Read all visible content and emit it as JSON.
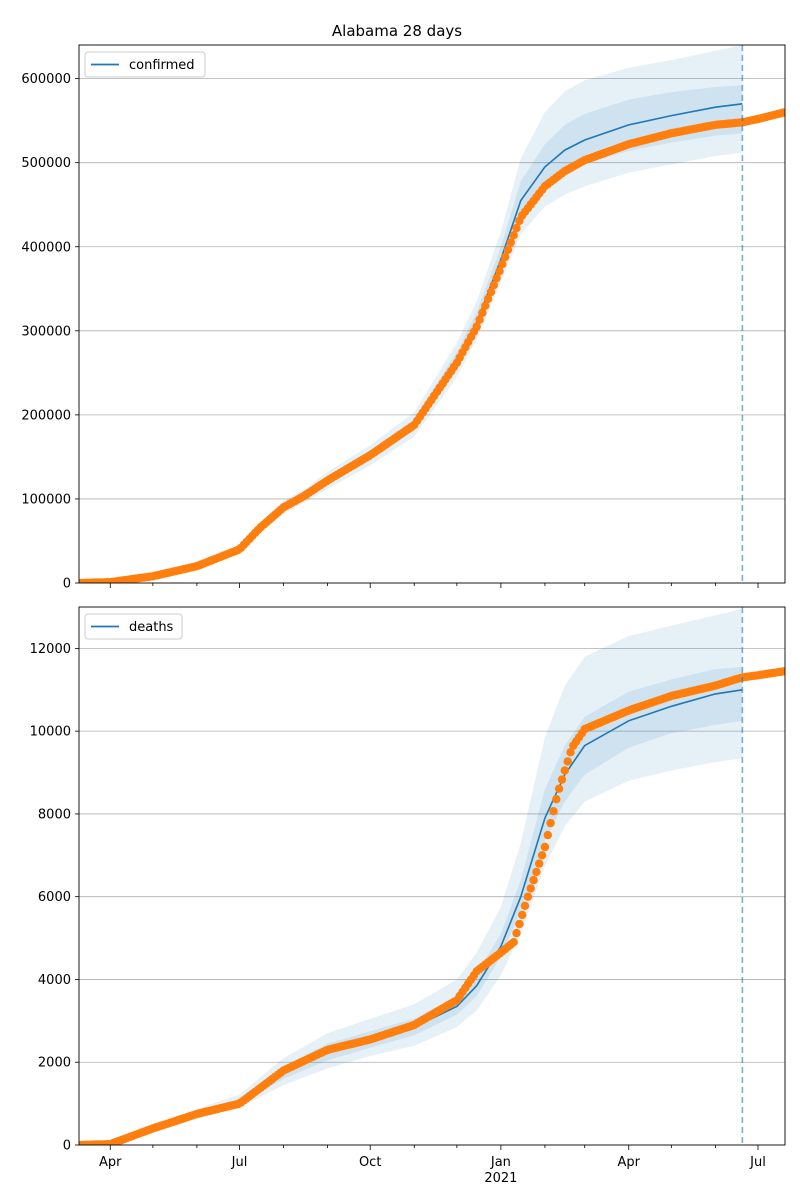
{
  "figure": {
    "title": "Alabama 28 days"
  },
  "chart_data": [
    {
      "type": "line",
      "title": "Alabama 28 days",
      "legend": {
        "entries": [
          "confirmed"
        ],
        "placement": "top-left"
      },
      "ylim": [
        0,
        640000
      ],
      "yticks": [
        0,
        100000,
        200000,
        300000,
        400000,
        500000,
        600000
      ],
      "ytick_labels": [
        "0",
        "100000",
        "200000",
        "300000",
        "400000",
        "500000",
        "600000"
      ],
      "xlim": [
        "2020-03-10",
        "2021-07-20"
      ],
      "grid": "y",
      "vline": "2021-06-20",
      "series": [
        {
          "name": "confirmed",
          "kind": "model",
          "color": "#1f77b4",
          "x": [
            "2020-03-10",
            "2020-04-01",
            "2020-05-01",
            "2020-06-01",
            "2020-07-01",
            "2020-07-15",
            "2020-08-01",
            "2020-08-15",
            "2020-09-01",
            "2020-10-01",
            "2020-11-01",
            "2020-12-01",
            "2020-12-15",
            "2021-01-01",
            "2021-01-15",
            "2021-02-01",
            "2021-02-15",
            "2021-03-01",
            "2021-04-01",
            "2021-05-01",
            "2021-06-01",
            "2021-06-20"
          ],
          "values": [
            0,
            1000,
            8000,
            20000,
            40000,
            65000,
            90000,
            103000,
            122000,
            152000,
            188000,
            265000,
            310000,
            385000,
            455000,
            495000,
            515000,
            527000,
            545000,
            556000,
            566000,
            570000
          ],
          "band_inner_lower": [
            0,
            900,
            7500,
            19000,
            38500,
            62000,
            86000,
            99000,
            117000,
            146000,
            181000,
            255000,
            300000,
            372000,
            435000,
            470000,
            488000,
            498000,
            514000,
            524000,
            532000,
            535000
          ],
          "band_inner_upper": [
            0,
            1100,
            8500,
            21000,
            41500,
            68000,
            94000,
            107000,
            127000,
            158000,
            195000,
            275000,
            322000,
            400000,
            478000,
            522000,
            545000,
            558000,
            575000,
            584000,
            590000,
            592000
          ],
          "band_outer_lower": [
            0,
            800,
            7000,
            18000,
            37000,
            59000,
            82000,
            95000,
            112000,
            140000,
            174000,
            245000,
            290000,
            358000,
            415000,
            448000,
            462000,
            472000,
            488000,
            498000,
            508000,
            512000
          ],
          "band_outer_upper": [
            0,
            1200,
            9000,
            22000,
            43000,
            71000,
            98000,
            111000,
            132000,
            164000,
            203000,
            286000,
            335000,
            418000,
            505000,
            560000,
            585000,
            598000,
            613000,
            622000,
            633000,
            640000
          ]
        },
        {
          "name": "",
          "kind": "observed",
          "color": "#ff7f0e",
          "x": [
            "2020-03-10",
            "2020-04-01",
            "2020-05-01",
            "2020-06-01",
            "2020-07-01",
            "2020-07-15",
            "2020-08-01",
            "2020-08-15",
            "2020-09-01",
            "2020-10-01",
            "2020-11-01",
            "2020-12-01",
            "2020-12-15",
            "2021-01-01",
            "2021-01-15",
            "2021-02-01",
            "2021-02-15",
            "2021-03-01",
            "2021-04-01",
            "2021-05-01",
            "2021-06-01",
            "2021-06-20",
            "2021-07-01",
            "2021-07-20"
          ],
          "values": [
            0,
            1000,
            8000,
            20000,
            40000,
            65000,
            90000,
            103000,
            122000,
            152000,
            188000,
            262000,
            305000,
            375000,
            435000,
            472000,
            490000,
            503000,
            522000,
            535000,
            545000,
            548000,
            552000,
            560000
          ]
        }
      ]
    },
    {
      "type": "line",
      "title": "",
      "legend": {
        "entries": [
          "deaths"
        ],
        "placement": "top-left"
      },
      "ylim": [
        0,
        13000
      ],
      "yticks": [
        0,
        2000,
        4000,
        6000,
        8000,
        10000,
        12000
      ],
      "ytick_labels": [
        "0",
        "2000",
        "4000",
        "6000",
        "8000",
        "10000",
        "12000"
      ],
      "xlim": [
        "2020-03-10",
        "2021-07-20"
      ],
      "xticks": [
        "2020-04-01",
        "2020-07-01",
        "2020-10-01",
        "2021-01-01",
        "2021-04-01",
        "2021-07-01"
      ],
      "xtick_labels": [
        "Apr",
        "Jul",
        "Oct",
        "Jan",
        "Apr",
        "Jul"
      ],
      "xtick_year_label": "2021",
      "grid": "y",
      "vline": "2021-06-20",
      "series": [
        {
          "name": "deaths",
          "kind": "model",
          "color": "#1f77b4",
          "x": [
            "2020-03-10",
            "2020-04-01",
            "2020-05-01",
            "2020-06-01",
            "2020-07-01",
            "2020-08-01",
            "2020-09-01",
            "2020-10-01",
            "2020-11-01",
            "2020-12-01",
            "2020-12-15",
            "2021-01-01",
            "2021-01-15",
            "2021-02-01",
            "2021-02-15",
            "2021-03-01",
            "2021-04-01",
            "2021-05-01",
            "2021-06-01",
            "2021-06-20"
          ],
          "values": [
            0,
            20,
            350,
            750,
            1050,
            1750,
            2250,
            2550,
            2850,
            3350,
            3850,
            4800,
            6000,
            7900,
            8950,
            9650,
            10250,
            10600,
            10900,
            11000
          ],
          "band_inner_lower": [
            0,
            18,
            320,
            700,
            980,
            1600,
            2050,
            2350,
            2650,
            3150,
            3600,
            4550,
            5650,
            7350,
            8300,
            8950,
            9600,
            9950,
            10150,
            10250
          ],
          "band_inner_upper": [
            0,
            22,
            380,
            800,
            1120,
            1900,
            2450,
            2750,
            3050,
            3600,
            4150,
            5100,
            6400,
            8600,
            9650,
            10350,
            10950,
            11250,
            11500,
            11550
          ],
          "band_outer_lower": [
            0,
            15,
            290,
            640,
            900,
            1450,
            1850,
            2150,
            2400,
            2850,
            3250,
            4100,
            5100,
            6750,
            7700,
            8300,
            8800,
            9050,
            9250,
            9350
          ],
          "band_outer_upper": [
            0,
            25,
            420,
            870,
            1220,
            2100,
            2700,
            3050,
            3400,
            4000,
            4650,
            5750,
            7300,
            9850,
            11100,
            11800,
            12300,
            12550,
            12800,
            12950
          ]
        },
        {
          "name": "",
          "kind": "observed",
          "color": "#ff7f0e",
          "x": [
            "2020-03-10",
            "2020-04-01",
            "2020-05-01",
            "2020-06-01",
            "2020-07-01",
            "2020-08-01",
            "2020-09-01",
            "2020-10-01",
            "2020-11-01",
            "2020-12-01",
            "2020-12-15",
            "2021-01-01",
            "2021-01-10",
            "2021-01-20",
            "2021-02-01",
            "2021-02-10",
            "2021-02-20",
            "2021-03-01",
            "2021-04-01",
            "2021-05-01",
            "2021-06-01",
            "2021-06-20",
            "2021-07-01",
            "2021-07-20"
          ],
          "values": [
            0,
            20,
            400,
            750,
            1000,
            1800,
            2300,
            2550,
            2900,
            3500,
            4200,
            4650,
            4900,
            6000,
            7200,
            8500,
            9600,
            10050,
            10500,
            10850,
            11100,
            11300,
            11350,
            11450
          ]
        }
      ]
    }
  ]
}
